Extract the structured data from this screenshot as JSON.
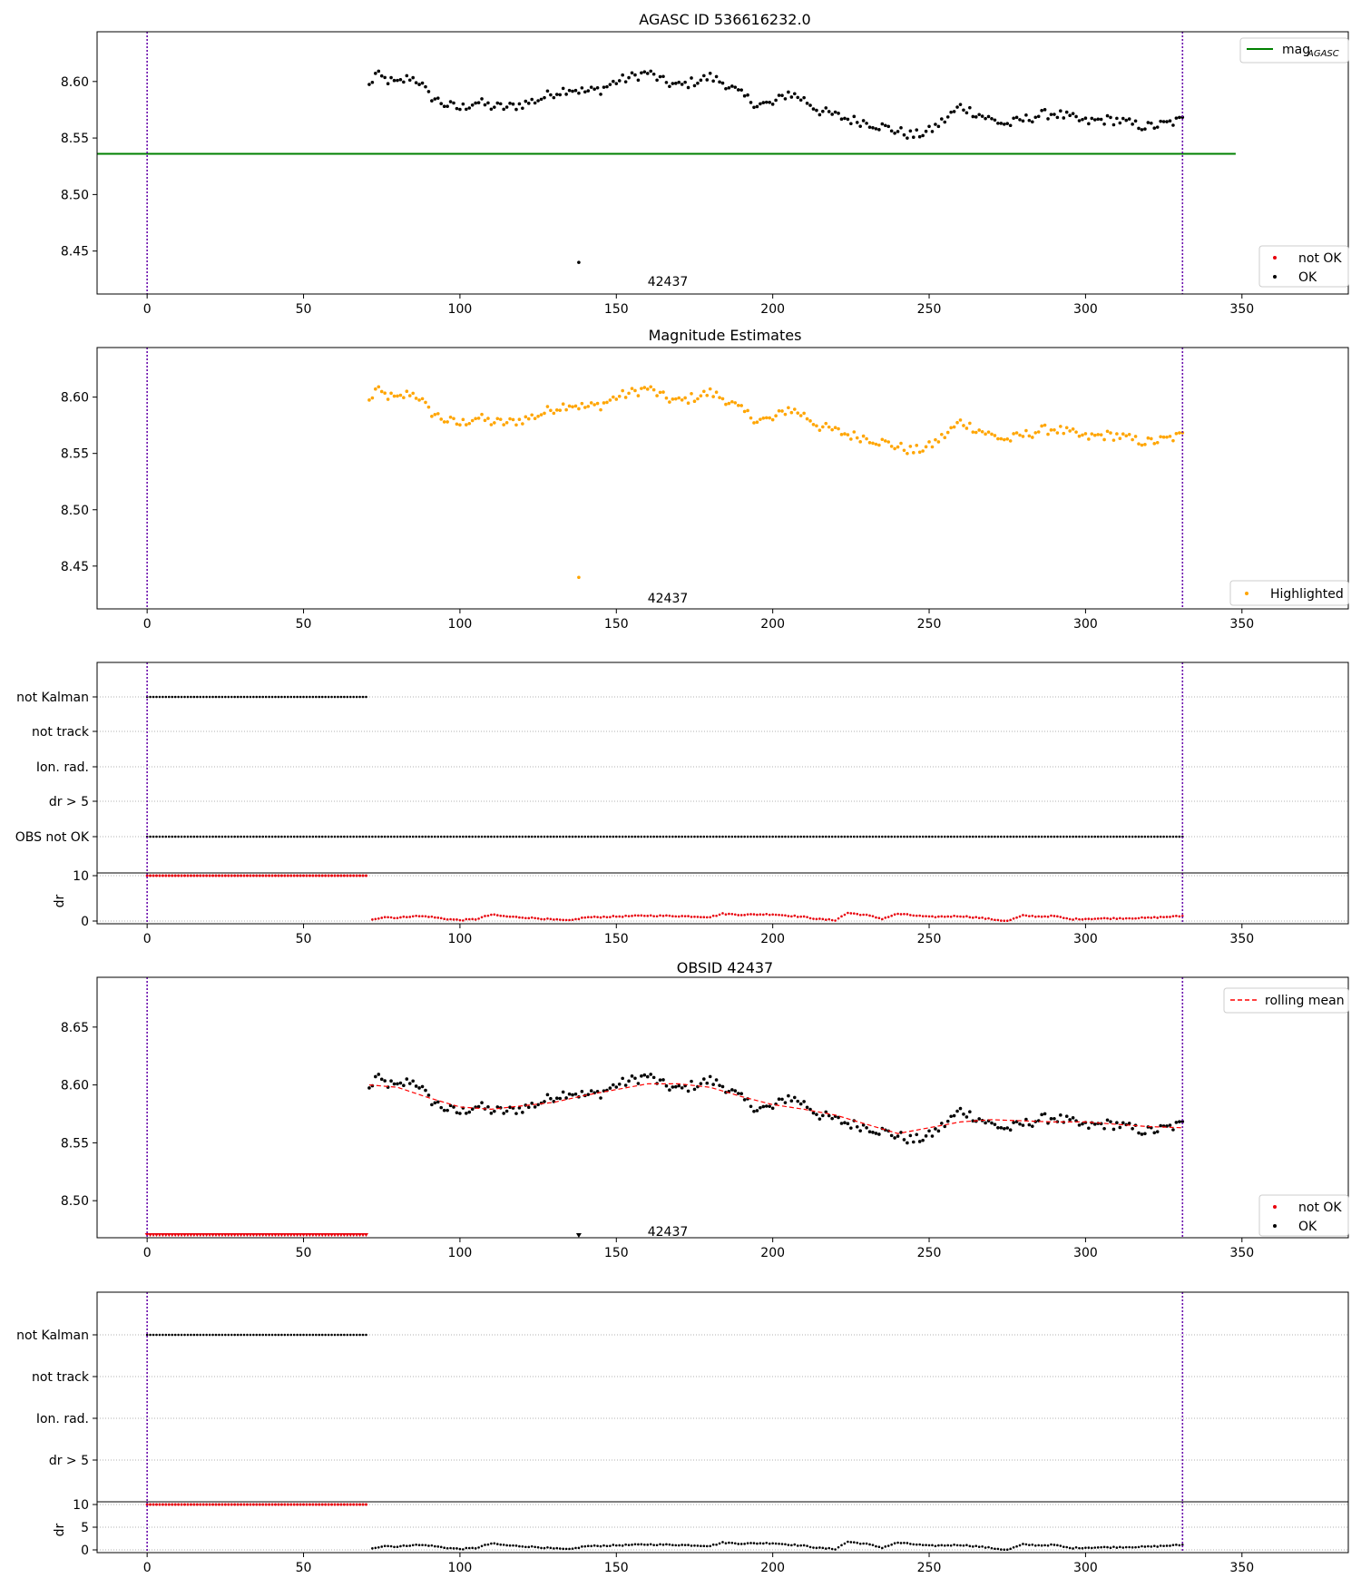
{
  "figure": {
    "colors": {
      "ok": "#000000",
      "not_ok": "#e8000b",
      "highlight": "#ffa500",
      "agasc_line": "#008000",
      "rolling": "#ff0000",
      "marker_line": "#6a0dad",
      "grid": "#b0b0b0"
    },
    "marker_lines_x": [
      0,
      331
    ],
    "obsid_label": "42437",
    "obsid_label_x": 165
  },
  "chart_data": [
    {
      "name": "agasc-panel",
      "type": "scatter",
      "title": "AGASC ID 536616232.0",
      "xlabel": "",
      "ylabel": "",
      "xlim": [
        -16,
        384
      ],
      "ylim": [
        8.412,
        8.644
      ],
      "xticks": [
        0,
        50,
        100,
        150,
        200,
        250,
        300,
        350
      ],
      "yticks": [
        8.45,
        8.5,
        8.55,
        8.6
      ],
      "ytick_labels": [
        "8.45",
        "8.50",
        "8.55",
        "8.60"
      ],
      "agasc_mag": 8.536,
      "agasc_line_x": [
        -16,
        348
      ],
      "outlier": {
        "x": 138,
        "y": 8.44
      },
      "legend_line": {
        "label": "mag",
        "subscript": "AGASC",
        "position": "top-right"
      },
      "legend_points": {
        "items": [
          "not OK",
          "OK"
        ],
        "position": "lower-right"
      }
    },
    {
      "name": "magnitude-estimates-panel",
      "type": "scatter",
      "title": "Magnitude Estimates",
      "xlim": [
        -16,
        384
      ],
      "ylim": [
        8.412,
        8.644
      ],
      "xticks": [
        0,
        50,
        100,
        150,
        200,
        250,
        300,
        350
      ],
      "yticks": [
        8.45,
        8.5,
        8.55,
        8.6
      ],
      "ytick_labels": [
        "8.45",
        "8.50",
        "8.55",
        "8.60"
      ],
      "outlier": {
        "x": 138,
        "y": 8.44
      },
      "legend_points": {
        "items": [
          "Highlighted"
        ],
        "position": "lower-right"
      }
    },
    {
      "name": "flags-panel-1",
      "type": "scatter",
      "flags": [
        "not Kalman",
        "not track",
        "Ion. rad.",
        "dr > 5",
        "OBS not OK"
      ],
      "flag_ranges": {
        "not Kalman": [
          0,
          70
        ],
        "OBS not OK": [
          0,
          331
        ]
      },
      "dr": {
        "ylabel": "dr",
        "yticks": [
          0,
          10
        ],
        "ylim": [
          0,
          10
        ],
        "clip_range": [
          0,
          70
        ]
      },
      "xticks": [
        0,
        50,
        100,
        150,
        200,
        250,
        300,
        350
      ]
    },
    {
      "name": "obsid-panel",
      "type": "line",
      "title": "OBSID 42437",
      "xlim": [
        -16,
        384
      ],
      "ylim": [
        8.468,
        8.693
      ],
      "xticks": [
        0,
        50,
        100,
        150,
        200,
        250,
        300,
        350
      ],
      "yticks": [
        8.5,
        8.55,
        8.6,
        8.65
      ],
      "ytick_labels": [
        "8.50",
        "8.55",
        "8.60",
        "8.65"
      ],
      "not_ok_range": [
        0,
        70
      ],
      "outlier_marker_x": 138,
      "rolling_mean": {
        "name": "rolling mean",
        "x": [
          71,
          80,
          90,
          100,
          110,
          120,
          130,
          140,
          150,
          160,
          170,
          180,
          190,
          200,
          210,
          220,
          230,
          240,
          250,
          260,
          270,
          280,
          290,
          300,
          310,
          320,
          331
        ],
        "y": [
          8.6,
          8.598,
          8.589,
          8.581,
          8.579,
          8.582,
          8.585,
          8.591,
          8.596,
          8.601,
          8.601,
          8.598,
          8.59,
          8.583,
          8.579,
          8.574,
          8.566,
          8.558,
          8.563,
          8.568,
          8.57,
          8.569,
          8.568,
          8.568,
          8.566,
          8.564,
          8.563
        ]
      },
      "legend_line": {
        "label": "rolling mean",
        "position": "top-right"
      },
      "legend_points": {
        "items": [
          "not OK",
          "OK"
        ],
        "position": "lower-right"
      }
    },
    {
      "name": "flags-panel-2",
      "type": "scatter",
      "flags": [
        "not Kalman",
        "not track",
        "Ion. rad.",
        "dr > 5"
      ],
      "flag_ranges": {
        "not Kalman": [
          0,
          70
        ]
      },
      "dr": {
        "ylabel": "dr",
        "yticks": [
          0,
          5,
          10
        ],
        "ylim": [
          0,
          10
        ],
        "clip_range": [
          0,
          70
        ]
      },
      "xticks": [
        0,
        50,
        100,
        150,
        200,
        250,
        300,
        350
      ]
    }
  ],
  "magnitude_series": {
    "x_start": 71,
    "x_end": 331,
    "anchors_x": [
      71,
      73,
      76,
      80,
      84,
      87,
      90,
      95,
      100,
      105,
      110,
      115,
      120,
      125,
      130,
      135,
      140,
      145,
      150,
      155,
      160,
      165,
      170,
      175,
      180,
      185,
      190,
      195,
      200,
      205,
      210,
      215,
      220,
      225,
      230,
      235,
      240,
      245,
      250,
      255,
      260,
      265,
      270,
      275,
      280,
      285,
      290,
      295,
      300,
      305,
      310,
      315,
      320,
      325,
      331
    ],
    "anchors_y": [
      8.596,
      8.606,
      8.602,
      8.598,
      8.604,
      8.6,
      8.588,
      8.58,
      8.576,
      8.582,
      8.578,
      8.577,
      8.58,
      8.584,
      8.59,
      8.594,
      8.591,
      8.593,
      8.6,
      8.604,
      8.608,
      8.6,
      8.596,
      8.6,
      8.604,
      8.598,
      8.588,
      8.58,
      8.58,
      8.59,
      8.584,
      8.574,
      8.57,
      8.566,
      8.564,
      8.56,
      8.556,
      8.552,
      8.556,
      8.566,
      8.578,
      8.572,
      8.566,
      8.562,
      8.566,
      8.57,
      8.572,
      8.568,
      8.564,
      8.566,
      8.566,
      8.562,
      8.56,
      8.562,
      8.566
    ],
    "noise": 0.0045
  },
  "dr_series": {
    "clipped_value": 10,
    "anchors_x": [
      72,
      76,
      80,
      85,
      90,
      95,
      100,
      105,
      110,
      115,
      120,
      125,
      130,
      135,
      140,
      150,
      160,
      170,
      180,
      184,
      190,
      200,
      210,
      215,
      220,
      224,
      230,
      235,
      240,
      250,
      260,
      265,
      270,
      275,
      280,
      285,
      290,
      295,
      300,
      310,
      320,
      331
    ],
    "anchors_y": [
      0.4,
      0.9,
      0.7,
      1.1,
      1.0,
      0.5,
      0.2,
      0.4,
      1.4,
      1.0,
      0.8,
      0.6,
      0.3,
      0.1,
      0.8,
      1.0,
      1.2,
      1.1,
      0.9,
      1.6,
      1.4,
      1.5,
      0.9,
      0.4,
      0.2,
      1.8,
      1.3,
      0.5,
      1.6,
      0.9,
      1.1,
      0.8,
      0.4,
      0.0,
      1.2,
      1.0,
      1.1,
      0.4,
      0.5,
      0.6,
      0.7,
      1.1
    ]
  }
}
